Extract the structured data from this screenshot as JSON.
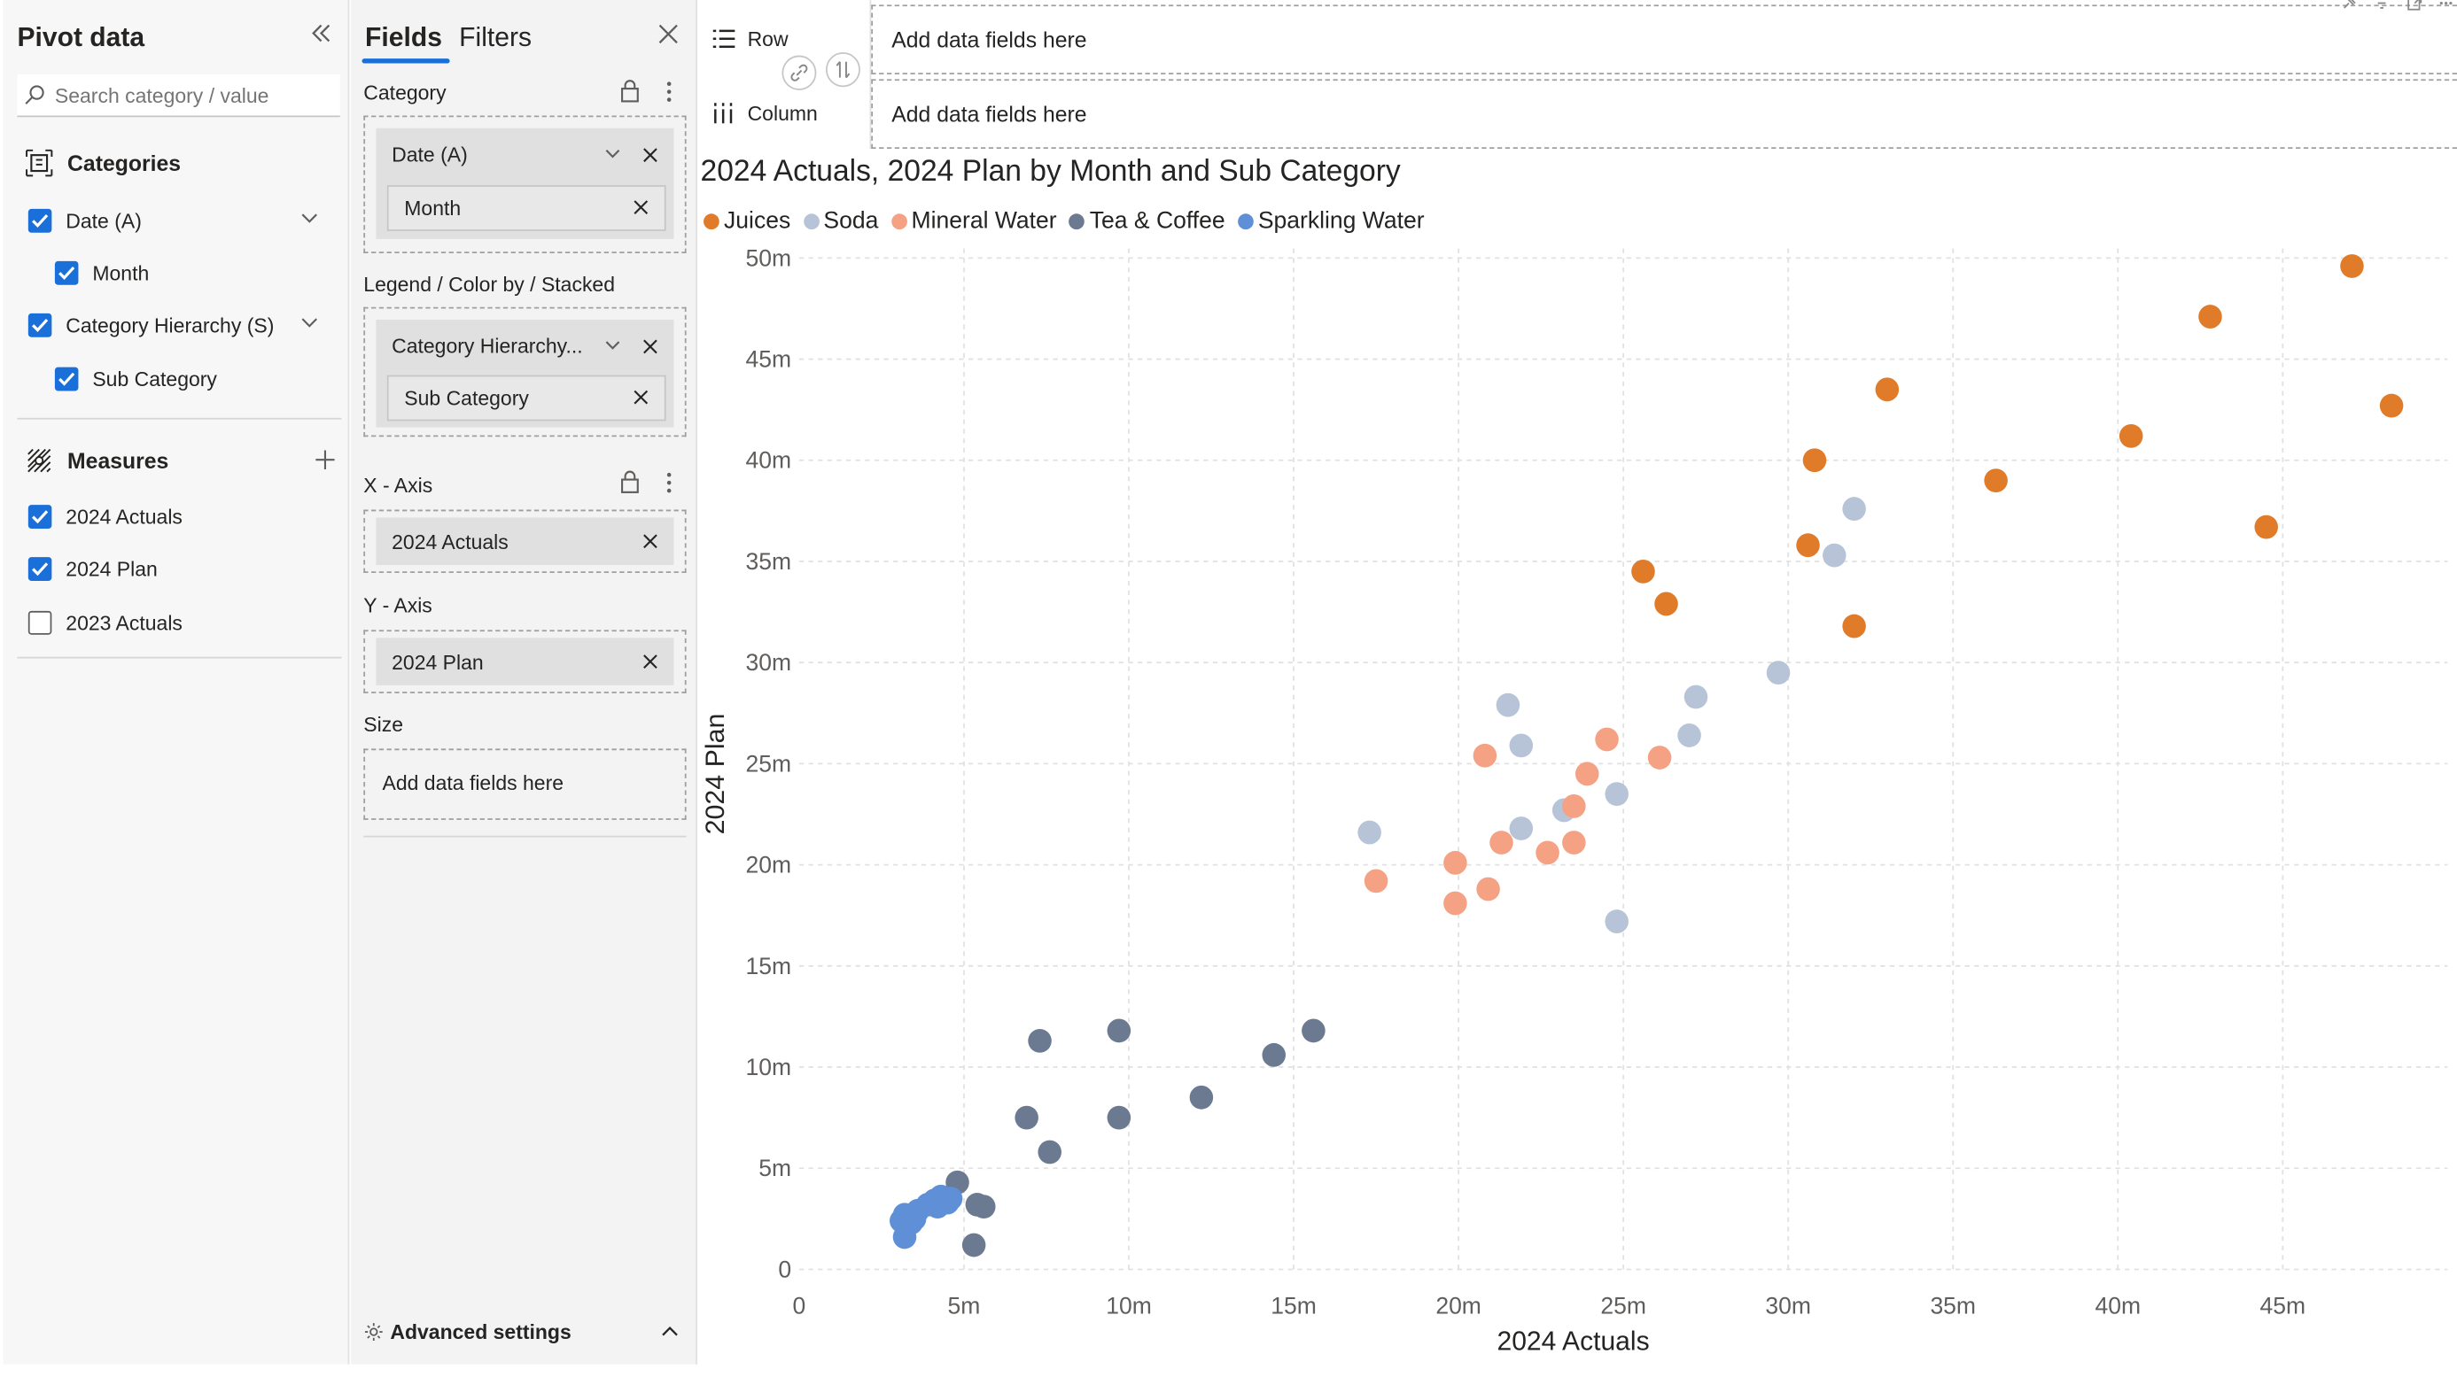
{
  "pivot": {
    "title": "Pivot data",
    "search_placeholder": "Search category / value",
    "categories_label": "Categories",
    "categories": [
      {
        "label": "Date (A)",
        "checked": true
      },
      {
        "label": "Month",
        "checked": true
      },
      {
        "label": "Category Hierarchy (S)",
        "checked": true
      },
      {
        "label": "Sub Category",
        "checked": true
      }
    ],
    "measures_label": "Measures",
    "measures": [
      {
        "label": "2024 Actuals",
        "checked": true
      },
      {
        "label": "2024 Plan",
        "checked": true
      },
      {
        "label": "2023 Actuals",
        "checked": false
      }
    ]
  },
  "fields": {
    "tab_fields": "Fields",
    "tab_filters": "Filters",
    "category_label": "Category",
    "category_chip": "Date (A)",
    "category_sub_chip": "Month",
    "legend_label": "Legend / Color by / Stacked",
    "legend_chip": "Category Hierarchy...",
    "legend_sub_chip": "Sub Category",
    "xaxis_label": "X - Axis",
    "xaxis_chip": "2024 Actuals",
    "yaxis_label": "Y - Axis",
    "yaxis_chip": "2024 Plan",
    "size_label": "Size",
    "size_placeholder": "Add data fields here",
    "advanced": "Advanced settings"
  },
  "layout_bar": {
    "row_label": "Row",
    "row_placeholder": "Add data fields here",
    "column_label": "Column",
    "column_placeholder": "Add data fields here"
  },
  "chart_data": {
    "type": "scatter",
    "title": "2024 Actuals, 2024 Plan by Month and Sub Category",
    "xlabel": "2024 Actuals",
    "ylabel": "2024 Plan",
    "xlim": [
      0,
      50
    ],
    "ylim": [
      0,
      50
    ],
    "x_ticks": [
      "0",
      "5m",
      "10m",
      "15m",
      "20m",
      "25m",
      "30m",
      "35m",
      "40m",
      "45m"
    ],
    "y_ticks": [
      "0",
      "5m",
      "10m",
      "15m",
      "20m",
      "25m",
      "30m",
      "35m",
      "40m",
      "45m",
      "50m"
    ],
    "grid": true,
    "legend_position": "top-left",
    "series": [
      {
        "name": "Juices",
        "color": "#e07b2a",
        "x": [
          47.1,
          42.8,
          48.3,
          33.0,
          40.4,
          36.3,
          30.8,
          44.5,
          30.6,
          25.6,
          26.3,
          32.0
        ],
        "y": [
          49.6,
          47.1,
          42.7,
          43.5,
          41.2,
          39.0,
          40.0,
          36.7,
          35.8,
          34.5,
          32.9,
          31.8
        ]
      },
      {
        "name": "Soda",
        "color": "#b7c3d7",
        "x": [
          32.0,
          31.4,
          29.7,
          27.2,
          21.5,
          27.0,
          21.9,
          24.8,
          21.9,
          23.2,
          17.3,
          24.8
        ],
        "y": [
          37.6,
          35.3,
          29.5,
          28.3,
          27.9,
          26.4,
          25.9,
          23.5,
          21.8,
          22.7,
          21.6,
          17.2
        ]
      },
      {
        "name": "Mineral Water",
        "color": "#f4a184",
        "x": [
          24.5,
          20.8,
          26.1,
          23.9,
          23.5,
          21.3,
          23.5,
          22.7,
          19.9,
          17.5,
          20.9,
          19.9
        ],
        "y": [
          26.2,
          25.4,
          25.3,
          24.5,
          22.9,
          21.1,
          21.1,
          20.6,
          20.1,
          19.2,
          18.8,
          18.1
        ]
      },
      {
        "name": "Tea & Coffee",
        "color": "#6c7a91",
        "x": [
          7.3,
          9.7,
          15.6,
          14.4,
          12.2,
          6.9,
          9.7,
          7.6,
          4.8,
          5.6,
          5.4,
          5.3
        ],
        "y": [
          11.3,
          11.8,
          11.8,
          10.6,
          8.5,
          7.5,
          7.5,
          5.8,
          4.3,
          3.1,
          3.2,
          1.2
        ]
      },
      {
        "name": "Sparkling Water",
        "color": "#5f8fd6",
        "x": [
          4.3,
          4.6,
          4.1,
          4.5,
          3.9,
          4.2,
          3.6,
          3.2,
          3.5,
          3.1,
          3.4,
          3.2
        ],
        "y": [
          3.6,
          3.5,
          3.4,
          3.3,
          3.2,
          3.1,
          2.9,
          2.7,
          2.5,
          2.4,
          2.3,
          1.6
        ]
      }
    ]
  }
}
